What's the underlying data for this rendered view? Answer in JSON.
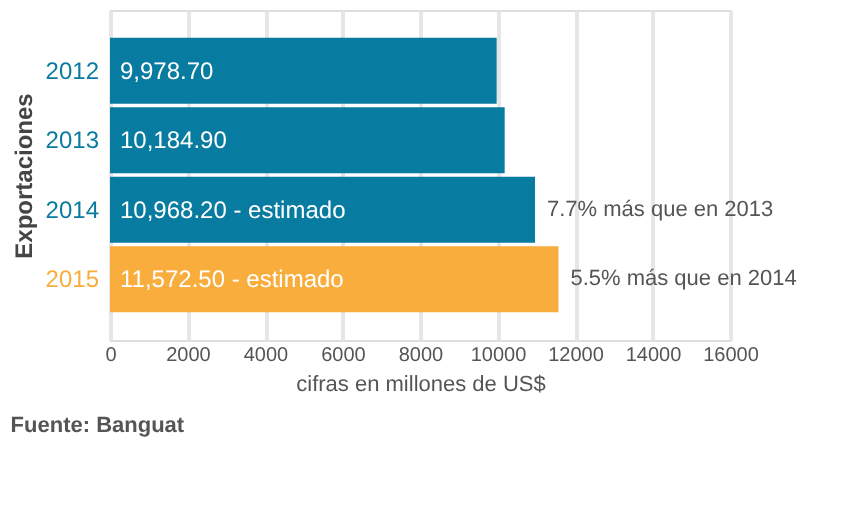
{
  "chart_data": {
    "type": "bar",
    "orientation": "horizontal",
    "xlabel": "cifras en millones de US$",
    "ylabel": "Exportaciones",
    "categories": [
      "2012",
      "2013",
      "2014",
      "2015"
    ],
    "values": [
      9978.7,
      10184.9,
      10968.2,
      11572.5
    ],
    "value_labels": [
      "9,978.70",
      "10,184.90",
      "10,968.20 - estimado",
      "11,572.50 - estimado"
    ],
    "colors": [
      "#087ba0",
      "#087ba0",
      "#087ba0",
      "#f9ad3c"
    ],
    "xlim": [
      0,
      16000
    ],
    "xticks": [
      0,
      2000,
      4000,
      6000,
      8000,
      10000,
      12000,
      14000,
      16000
    ],
    "grid": "x",
    "annotations": [
      {
        "text": "7.7% más que en 2013",
        "x": 10968.2,
        "y": "2014"
      },
      {
        "text": "5.5% más que en 2014",
        "x": 11572.5,
        "y": "2015"
      },
      "Fuente: Banguat"
    ]
  }
}
